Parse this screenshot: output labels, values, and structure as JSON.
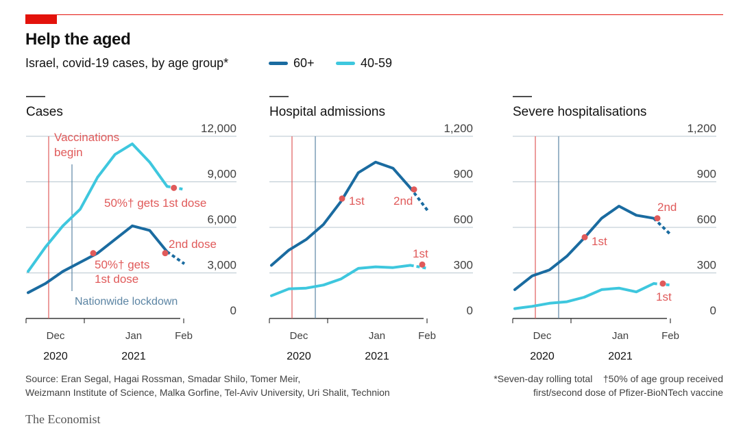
{
  "title": "Help the aged",
  "subtitle": "Israel, covid-19 cases, by age group*",
  "legend": [
    {
      "label": "60+",
      "color": "#1a6ba0"
    },
    {
      "label": "40-59",
      "color": "#3ec7de"
    }
  ],
  "colors": {
    "accent_red": "#e3120b",
    "annotation_red": "#e05a5a",
    "lockdown_blue": "#5b84a3"
  },
  "x_axis": {
    "month_labels": [
      "Dec",
      "Jan",
      "Feb"
    ],
    "year_labels": [
      "2020",
      "2021"
    ]
  },
  "chart_data": [
    {
      "type": "line",
      "title": "Cases",
      "ylim": [
        0,
        12000
      ],
      "yticks": [
        "12,000",
        "9,000",
        "6,000",
        "3,000",
        "0"
      ],
      "grid": true,
      "series": [
        {
          "name": "60+",
          "x": [
            "2020-11-15",
            "2020-11-25",
            "2020-12-05",
            "2020-12-15",
            "2020-12-24",
            "2021-01-03",
            "2021-01-10",
            "2021-01-17",
            "2021-01-25",
            "2021-02-01"
          ],
          "values": [
            1700,
            2300,
            3100,
            3700,
            4300,
            5200,
            6100,
            5800,
            4400,
            3600
          ]
        },
        {
          "name": "40-59",
          "x": [
            "2020-11-15",
            "2020-11-25",
            "2020-12-05",
            "2020-12-15",
            "2020-12-24",
            "2021-01-03",
            "2021-01-10",
            "2021-01-17",
            "2021-01-25",
            "2021-02-01"
          ],
          "values": [
            3100,
            4700,
            6100,
            7200,
            9300,
            10800,
            11500,
            10300,
            8700,
            8500
          ]
        }
      ],
      "annotations": {
        "vaccinations": "Vaccinations begin",
        "lockdown": "Nationwide lockdown",
        "dose1_40_59": "50%† gets 1st dose",
        "dose1_60_part1": "50%† gets",
        "dose1_60_part2": "1st dose",
        "dose2_60": "2nd dose"
      }
    },
    {
      "type": "line",
      "title": "Hospital admissions",
      "ylim": [
        0,
        1200
      ],
      "yticks": [
        "1,200",
        "900",
        "600",
        "300",
        "0"
      ],
      "grid": true,
      "series": [
        {
          "name": "60+",
          "x": [
            "2020-11-15",
            "2020-11-25",
            "2020-12-05",
            "2020-12-15",
            "2020-12-24",
            "2021-01-03",
            "2021-01-10",
            "2021-01-17",
            "2021-01-25",
            "2021-02-01"
          ],
          "values": [
            350,
            450,
            520,
            620,
            770,
            960,
            1030,
            990,
            860,
            710
          ]
        },
        {
          "name": "40-59",
          "x": [
            "2020-11-15",
            "2020-11-25",
            "2020-12-05",
            "2020-12-15",
            "2020-12-24",
            "2021-01-03",
            "2021-01-10",
            "2021-01-17",
            "2021-01-25",
            "2021-02-01"
          ],
          "values": [
            150,
            195,
            200,
            220,
            260,
            330,
            340,
            335,
            350,
            330
          ]
        }
      ],
      "annotations": {
        "dose1_60": "1st",
        "dose2_60": "2nd",
        "dose1_40_59": "1st"
      }
    },
    {
      "type": "line",
      "title": "Severe hospitalisations",
      "ylim": [
        0,
        1200
      ],
      "yticks": [
        "1,200",
        "900",
        "600",
        "300",
        "0"
      ],
      "grid": true,
      "series": [
        {
          "name": "60+",
          "x": [
            "2020-11-15",
            "2020-11-25",
            "2020-12-05",
            "2020-12-15",
            "2020-12-24",
            "2021-01-03",
            "2021-01-10",
            "2021-01-17",
            "2021-01-25",
            "2021-02-01"
          ],
          "values": [
            190,
            280,
            320,
            410,
            530,
            660,
            740,
            680,
            660,
            550
          ]
        },
        {
          "name": "40-59",
          "x": [
            "2020-11-15",
            "2020-11-25",
            "2020-12-05",
            "2020-12-15",
            "2020-12-24",
            "2021-01-03",
            "2021-01-10",
            "2021-01-17",
            "2021-01-25",
            "2021-02-01"
          ],
          "values": [
            65,
            80,
            100,
            110,
            140,
            190,
            200,
            175,
            230,
            220
          ]
        }
      ],
      "annotations": {
        "dose1_60": "1st",
        "dose2_60": "2nd",
        "dose1_40_59": "1st"
      }
    }
  ],
  "footer": {
    "source_line1": "Source: Eran Segal, Hagai Rossman, Smadar Shilo, Tomer Meir,",
    "source_line2": "Weizmann Institute of Science, Malka Gorfine, Tel-Aviv University, Uri Shalit, Technion",
    "note1": "*Seven-day rolling total",
    "note2_part1": "†50% of age group received",
    "note2_part2": "first/second dose of Pfizer-BioNTech vaccine"
  },
  "brand": "The Economist"
}
